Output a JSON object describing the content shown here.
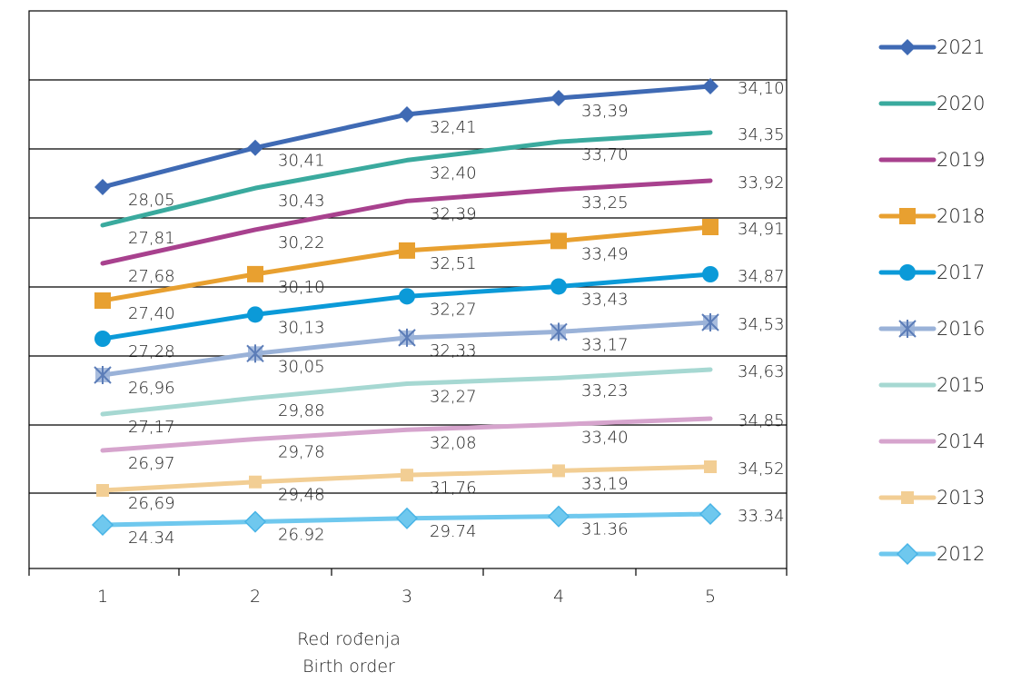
{
  "chart_data": {
    "type": "line",
    "categories": [
      "1",
      "2",
      "3",
      "4",
      "5"
    ],
    "xlabel": [
      "Red rođenja",
      "Birth order"
    ],
    "ylabel": "",
    "title": "",
    "legend": "right",
    "series": [
      {
        "name": "2021",
        "color": "#3F6AB4",
        "marker": "diamond",
        "values": [
          28.05,
          30.41,
          32.41,
          33.39,
          34.1
        ],
        "labels": [
          "28,05",
          "30,41",
          "32,41",
          "33,39",
          "34,10"
        ]
      },
      {
        "name": "2020",
        "color": "#3AAA9E",
        "marker": "none",
        "values": [
          27.81,
          30.43,
          32.4,
          33.7,
          34.35
        ],
        "labels": [
          "27,81",
          "30,43",
          "32,40",
          "33,70",
          "34,35"
        ]
      },
      {
        "name": "2019",
        "color": "#A8418E",
        "marker": "none",
        "values": [
          27.68,
          30.22,
          32.39,
          33.25,
          33.92
        ],
        "labels": [
          "27,68",
          "30,22",
          "32,39",
          "33,25",
          "33,92"
        ]
      },
      {
        "name": "2018",
        "color": "#E8A030",
        "marker": "square",
        "values": [
          27.4,
          30.1,
          32.51,
          33.49,
          34.91
        ],
        "labels": [
          "27,40",
          "30,10",
          "32,51",
          "33,49",
          "34,91"
        ]
      },
      {
        "name": "2017",
        "color": "#0B9AD8",
        "marker": "circle",
        "values": [
          27.28,
          30.13,
          32.27,
          33.43,
          34.87
        ],
        "labels": [
          "27,28",
          "30,13",
          "32,27",
          "33,43",
          "34,87"
        ]
      },
      {
        "name": "2016",
        "color": "#9AB2D8",
        "marker": "star",
        "values": [
          26.96,
          30.05,
          32.33,
          33.17,
          34.53
        ],
        "labels": [
          "26,96",
          "30,05",
          "32,33",
          "33,17",
          "34,53"
        ]
      },
      {
        "name": "2015",
        "color": "#A6D8D2",
        "marker": "none",
        "values": [
          27.17,
          29.88,
          32.27,
          33.23,
          34.63
        ],
        "labels": [
          "27,17",
          "29,88",
          "32,27",
          "33,23",
          "34,63"
        ]
      },
      {
        "name": "2014",
        "color": "#D6A4CD",
        "marker": "none",
        "values": [
          26.97,
          29.78,
          32.08,
          33.4,
          34.85
        ],
        "labels": [
          "26,97",
          "29,78",
          "32,08",
          "33,40",
          "34,85"
        ]
      },
      {
        "name": "2013",
        "color": "#F2CE94",
        "marker": "small-square",
        "values": [
          26.69,
          29.48,
          31.76,
          33.19,
          34.52
        ],
        "labels": [
          "26,69",
          "29,48",
          "31,76",
          "33,19",
          "34,52"
        ]
      },
      {
        "name": "2012",
        "color": "#6FC8EE",
        "marker": "diamond-outline",
        "values": [
          24.34,
          26.92,
          29.74,
          31.36,
          33.34
        ],
        "labels": [
          "24.34",
          "26.92",
          "29.74",
          "31.36",
          "33.34"
        ]
      }
    ]
  }
}
